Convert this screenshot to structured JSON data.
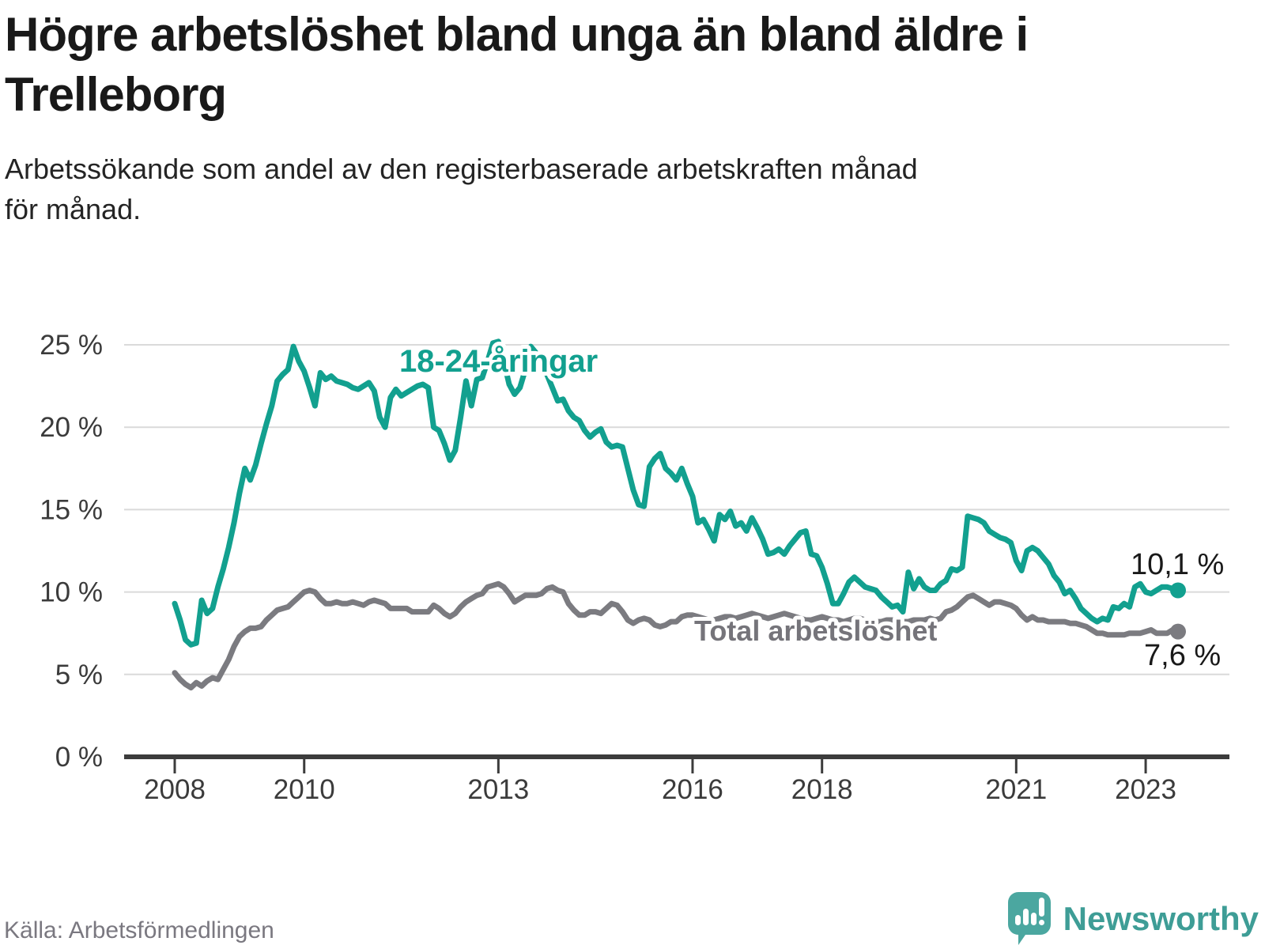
{
  "title_lines": [
    "Högre arbetslöshet bland unga än bland äldre i",
    "Trelleborg"
  ],
  "subtitle_lines": [
    "Arbetssökande som andel av den registerbaserade arbetskraften månad",
    "för månad."
  ],
  "source": "Källa: Arbetsförmedlingen",
  "logo": {
    "text": "Newsworthy",
    "icon": "speech-bubble-bar-chart-icon",
    "color": "#3e9d96"
  },
  "chart_data": {
    "type": "line",
    "title": "Högre arbetslöshet bland unga än bland äldre i Trelleborg",
    "xlabel": "",
    "ylabel": "",
    "unit": "%",
    "x_start_year": 2008,
    "x_end_label": "jul 2023",
    "months": 187,
    "ylim": [
      0,
      25
    ],
    "grid": true,
    "colors": {
      "grid": "#dadada",
      "axis": "#3c3c3c",
      "axis_text": "#3b3b3b",
      "value_text": "#191919",
      "background": "#ffffff"
    },
    "y_ticks": [
      {
        "value": 0,
        "label": "0 %"
      },
      {
        "value": 5,
        "label": "5 %"
      },
      {
        "value": 10,
        "label": "10 %"
      },
      {
        "value": 15,
        "label": "15 %"
      },
      {
        "value": 20,
        "label": "20 %"
      },
      {
        "value": 25,
        "label": "25 %"
      }
    ],
    "x_ticks": [
      {
        "year": 2008,
        "label": "2008"
      },
      {
        "year": 2010,
        "label": "2010"
      },
      {
        "year": 2013,
        "label": "2013"
      },
      {
        "year": 2016,
        "label": "2016"
      },
      {
        "year": 2018,
        "label": "2018"
      },
      {
        "year": 2021,
        "label": "2021"
      },
      {
        "year": 2023,
        "label": "2023"
      }
    ],
    "series": [
      {
        "id": "youth",
        "name": "18-24-åringar",
        "color": "#12a08f",
        "label_color": "#12a08f",
        "end_label": "10,1 %",
        "end_value": 10.1,
        "values": [
          9.3,
          8.3,
          7.1,
          6.8,
          6.9,
          9.5,
          8.7,
          9.0,
          10.3,
          11.4,
          12.7,
          14.2,
          16.0,
          17.5,
          16.8,
          17.7,
          19.0,
          20.2,
          21.3,
          22.8,
          23.2,
          23.5,
          24.9,
          24.0,
          23.4,
          22.4,
          21.3,
          23.3,
          22.9,
          23.1,
          22.8,
          22.7,
          22.6,
          22.4,
          22.3,
          22.5,
          22.7,
          22.2,
          20.6,
          20.0,
          21.8,
          22.3,
          21.9,
          22.1,
          22.3,
          22.5,
          22.6,
          22.4,
          20.0,
          19.8,
          19.0,
          18.0,
          18.6,
          20.6,
          22.8,
          21.3,
          22.9,
          23.0,
          24.0,
          25.1,
          25.2,
          24.0,
          22.6,
          22.0,
          22.4,
          23.5,
          24.9,
          24.5,
          23.8,
          23.2,
          22.4,
          21.6,
          21.7,
          21.0,
          20.6,
          20.4,
          19.8,
          19.4,
          19.7,
          19.9,
          19.1,
          18.8,
          18.9,
          18.8,
          17.5,
          16.2,
          15.3,
          15.2,
          17.6,
          18.1,
          18.4,
          17.5,
          17.2,
          16.8,
          17.5,
          16.6,
          15.8,
          14.2,
          14.4,
          13.8,
          13.1,
          14.7,
          14.4,
          14.9,
          14.0,
          14.2,
          13.7,
          14.5,
          13.9,
          13.2,
          12.3,
          12.4,
          12.6,
          12.3,
          12.8,
          13.2,
          13.6,
          13.7,
          12.3,
          12.2,
          11.5,
          10.5,
          9.3,
          9.3,
          9.9,
          10.6,
          10.9,
          10.6,
          10.3,
          10.2,
          10.1,
          9.7,
          9.4,
          9.1,
          9.2,
          8.8,
          11.2,
          10.2,
          10.8,
          10.3,
          10.1,
          10.1,
          10.5,
          10.7,
          11.4,
          11.3,
          11.5,
          14.6,
          14.5,
          14.4,
          14.2,
          13.7,
          13.5,
          13.3,
          13.2,
          13.0,
          11.9,
          11.3,
          12.5,
          12.7,
          12.5,
          12.1,
          11.7,
          11.0,
          10.6,
          9.9,
          10.1,
          9.6,
          9.0,
          8.7,
          8.4,
          8.2,
          8.4,
          8.3,
          9.1,
          9.0,
          9.3,
          9.1,
          10.3,
          10.5,
          10.0,
          9.9,
          10.1,
          10.3,
          10.3,
          10.2,
          10.1
        ]
      },
      {
        "id": "total",
        "name": "Total arbetslöshet",
        "color": "#7b7b80",
        "label_color": "#75747a",
        "end_label": "7,6 %",
        "end_value": 7.6,
        "values": [
          5.1,
          4.7,
          4.4,
          4.2,
          4.5,
          4.3,
          4.6,
          4.8,
          4.7,
          5.3,
          5.9,
          6.7,
          7.3,
          7.6,
          7.8,
          7.8,
          7.9,
          8.3,
          8.6,
          8.9,
          9.0,
          9.1,
          9.4,
          9.7,
          10.0,
          10.1,
          10.0,
          9.6,
          9.3,
          9.3,
          9.4,
          9.3,
          9.3,
          9.4,
          9.3,
          9.2,
          9.4,
          9.5,
          9.4,
          9.3,
          9.0,
          9.0,
          9.0,
          9.0,
          8.8,
          8.8,
          8.8,
          8.8,
          9.2,
          9.0,
          8.7,
          8.5,
          8.7,
          9.1,
          9.4,
          9.6,
          9.8,
          9.9,
          10.3,
          10.4,
          10.5,
          10.3,
          9.9,
          9.4,
          9.6,
          9.8,
          9.8,
          9.8,
          9.9,
          10.2,
          10.3,
          10.1,
          10.0,
          9.3,
          8.9,
          8.6,
          8.6,
          8.8,
          8.8,
          8.7,
          9.0,
          9.3,
          9.2,
          8.8,
          8.3,
          8.1,
          8.3,
          8.4,
          8.3,
          8.0,
          7.9,
          8.0,
          8.2,
          8.2,
          8.5,
          8.6,
          8.6,
          8.5,
          8.4,
          8.3,
          8.3,
          8.4,
          8.5,
          8.5,
          8.4,
          8.5,
          8.6,
          8.7,
          8.6,
          8.5,
          8.4,
          8.5,
          8.6,
          8.7,
          8.6,
          8.5,
          8.4,
          8.3,
          8.3,
          8.4,
          8.5,
          8.4,
          8.3,
          8.3,
          8.2,
          8.3,
          8.4,
          8.4,
          8.3,
          8.3,
          8.2,
          8.2,
          8.3,
          8.3,
          8.2,
          8.2,
          8.2,
          8.3,
          8.3,
          8.3,
          8.4,
          8.3,
          8.4,
          8.8,
          8.9,
          9.1,
          9.4,
          9.7,
          9.8,
          9.6,
          9.4,
          9.2,
          9.4,
          9.4,
          9.3,
          9.2,
          9.0,
          8.6,
          8.3,
          8.5,
          8.3,
          8.3,
          8.2,
          8.2,
          8.2,
          8.2,
          8.1,
          8.1,
          8.0,
          7.9,
          7.7,
          7.5,
          7.5,
          7.4,
          7.4,
          7.4,
          7.4,
          7.5,
          7.5,
          7.5,
          7.6,
          7.7,
          7.5,
          7.5,
          7.5,
          7.7,
          7.6
        ]
      }
    ]
  }
}
